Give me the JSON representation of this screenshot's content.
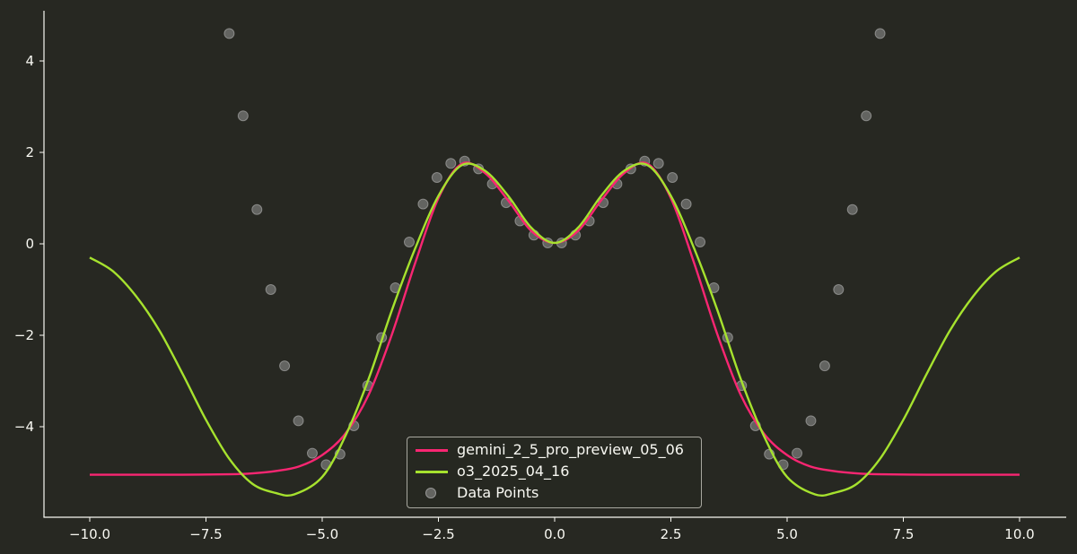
{
  "chart_data": {
    "type": "line",
    "title": "",
    "xlabel": "",
    "ylabel": "",
    "xlim": [
      -11,
      11
    ],
    "ylim": [
      -5.9,
      5.0
    ],
    "grid": false,
    "legend_position": "lower center",
    "x_ticks": [
      "−10.0",
      "−7.5",
      "−5.0",
      "−2.5",
      "0.0",
      "2.5",
      "5.0",
      "7.5",
      "10.0"
    ],
    "x_tick_values": [
      -10,
      -7.5,
      -5,
      -2.5,
      0,
      2.5,
      5,
      7.5,
      10
    ],
    "y_ticks": [
      "−4",
      "−2",
      "0",
      "2",
      "4"
    ],
    "y_tick_values": [
      -4,
      -2,
      0,
      2,
      4
    ],
    "series": [
      {
        "name": "gemini_2_5_pro_preview_05_06",
        "type": "line",
        "color": "#f92672",
        "x": [
          -10,
          -9,
          -8,
          -7,
          -6.5,
          -6,
          -5.5,
          -5,
          -4.5,
          -4,
          -3.5,
          -3,
          -2.5,
          -2,
          -1.5,
          -1,
          -0.5,
          0,
          0.5,
          1,
          1.5,
          2,
          2.5,
          3,
          3.5,
          4,
          4.5,
          5,
          5.5,
          6,
          6.5,
          7,
          8,
          9,
          10
        ],
        "values": [
          -5.05,
          -5.05,
          -5.05,
          -5.04,
          -5.02,
          -4.97,
          -4.87,
          -4.62,
          -4.15,
          -3.3,
          -1.98,
          -0.42,
          1.0,
          1.75,
          1.55,
          0.95,
          0.28,
          0.02,
          0.28,
          0.95,
          1.55,
          1.75,
          1.0,
          -0.42,
          -1.98,
          -3.3,
          -4.15,
          -4.62,
          -4.87,
          -4.97,
          -5.02,
          -5.04,
          -5.05,
          -5.05,
          -5.05
        ]
      },
      {
        "name": "o3_2025_04_16",
        "type": "line",
        "color": "#a6e22e",
        "x": [
          -10,
          -9.5,
          -9,
          -8.5,
          -8,
          -7.5,
          -7,
          -6.5,
          -6,
          -5.6,
          -5,
          -4.5,
          -4,
          -3.5,
          -3,
          -2.5,
          -2,
          -1.5,
          -1,
          -0.5,
          0,
          0.5,
          1,
          1.5,
          2,
          2.5,
          3,
          3.5,
          4,
          4.5,
          5,
          5.6,
          6,
          6.5,
          7,
          7.5,
          8,
          8.5,
          9,
          9.5,
          10
        ],
        "values": [
          -0.3,
          -0.6,
          -1.15,
          -1.9,
          -2.85,
          -3.85,
          -4.7,
          -5.25,
          -5.45,
          -5.48,
          -5.1,
          -4.2,
          -2.95,
          -1.45,
          -0.1,
          1.05,
          1.72,
          1.6,
          1.05,
          0.35,
          0.02,
          0.35,
          1.05,
          1.6,
          1.72,
          1.05,
          -0.1,
          -1.45,
          -2.95,
          -4.2,
          -5.1,
          -5.48,
          -5.45,
          -5.25,
          -4.7,
          -3.85,
          -2.85,
          -1.9,
          -1.15,
          -0.6,
          -0.3
        ]
      },
      {
        "name": "Data Points",
        "type": "scatter",
        "color": "#969696",
        "x": [
          -7.0,
          -6.702,
          -6.404,
          -6.106,
          -5.809,
          -5.511,
          -5.213,
          -4.915,
          -4.617,
          -4.319,
          -4.021,
          -3.723,
          -3.426,
          -3.128,
          -2.83,
          -2.532,
          -2.234,
          -1.936,
          -1.638,
          -1.34,
          -1.043,
          -0.745,
          -0.447,
          -0.149,
          0.149,
          0.447,
          0.745,
          1.043,
          1.34,
          1.638,
          1.936,
          2.234,
          2.532,
          2.83,
          3.128,
          3.426,
          3.723,
          4.021,
          4.319,
          4.617,
          4.915,
          5.213,
          5.511,
          5.809,
          6.106,
          6.404,
          6.702,
          7.0
        ],
        "values": [
          4.6,
          2.8,
          0.75,
          -1.0,
          -2.67,
          -3.87,
          -4.58,
          -4.83,
          -4.6,
          -3.98,
          -3.1,
          -2.05,
          -0.96,
          0.04,
          0.87,
          1.45,
          1.76,
          1.81,
          1.64,
          1.31,
          0.9,
          0.5,
          0.19,
          0.02,
          0.02,
          0.19,
          0.5,
          0.9,
          1.31,
          1.64,
          1.81,
          1.76,
          1.45,
          0.87,
          0.04,
          -0.96,
          -2.05,
          -3.1,
          -3.98,
          -4.6,
          -4.83,
          -4.58,
          -3.87,
          -2.67,
          -1.0,
          0.75,
          2.8,
          4.6
        ]
      }
    ]
  },
  "legend": {
    "items": [
      {
        "label": "gemini_2_5_pro_preview_05_06",
        "color": "#f92672"
      },
      {
        "label": "o3_2025_04_16",
        "color": "#a6e22e"
      },
      {
        "label": "Data Points",
        "color": "#969696"
      }
    ]
  },
  "colors": {
    "background": "#272822",
    "axis": "#f8f8f2",
    "text": "#f8f8f2"
  }
}
